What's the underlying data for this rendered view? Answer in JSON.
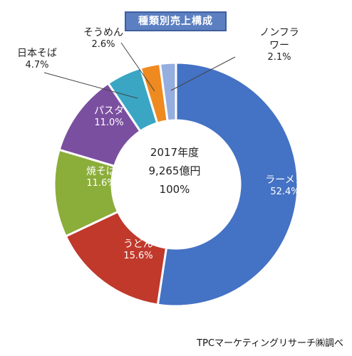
{
  "title": "種類別売上構成",
  "source_note": "TPCマーケティングリサーチ㈱調べ",
  "center": {
    "year": "2017年度",
    "total": "9,265億円",
    "percent": "100%"
  },
  "chart_data": {
    "type": "pie",
    "donut": true,
    "title": "種類別売上構成",
    "categories": [
      "ラーメン",
      "うどん",
      "焼そば",
      "パスタ",
      "日本そば",
      "そうめん",
      "ノンフラワー"
    ],
    "values": [
      52.4,
      15.6,
      11.6,
      11.0,
      4.7,
      2.6,
      2.1
    ],
    "labels": [
      "ラーメン",
      "うどん",
      "焼そば",
      "パスタ",
      "日本そば",
      "そうめん",
      "ノンフラ\nワー"
    ],
    "value_labels": [
      "52.4%",
      "15.6%",
      "11.6%",
      "11.0%",
      "4.7%",
      "2.6%",
      "2.1%"
    ],
    "colors": [
      "#4472c4",
      "#c0392b",
      "#8bad3a",
      "#7b4fa0",
      "#3aa6c4",
      "#ee8a1f",
      "#95aee0"
    ],
    "start_angle_deg": 0,
    "direction": "clockwise"
  }
}
